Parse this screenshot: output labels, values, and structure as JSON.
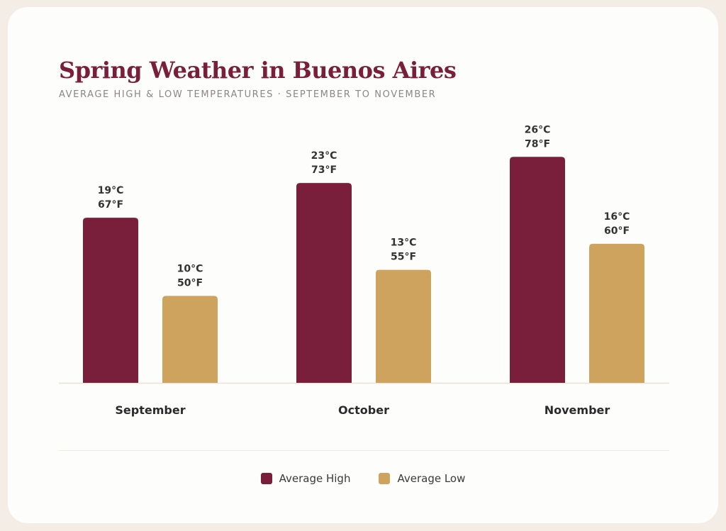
{
  "colors": {
    "high": "#7a1f3b",
    "low": "#cda35e",
    "title": "#7a1f3b",
    "axis": "#e9dfd2"
  },
  "chart_data": {
    "type": "bar",
    "title": "Spring Weather in Buenos Aires",
    "subtitle": "AVERAGE HIGH & LOW TEMPERATURES · SEPTEMBER TO NOVEMBER",
    "categories": [
      "September",
      "October",
      "November"
    ],
    "series": [
      {
        "name": "Average High",
        "values": [
          19,
          23,
          26
        ],
        "values_f": [
          67,
          73,
          78
        ],
        "labels_c": [
          "19°C",
          "23°C",
          "26°C"
        ],
        "labels_f": [
          "67°F",
          "73°F",
          "78°F"
        ]
      },
      {
        "name": "Average Low",
        "values": [
          10,
          13,
          16
        ],
        "values_f": [
          50,
          55,
          60
        ],
        "labels_c": [
          "10°C",
          "13°C",
          "16°C"
        ],
        "labels_f": [
          "50°F",
          "55°F",
          "60°F"
        ]
      }
    ],
    "ylim": [
      0,
      31
    ],
    "grid": false,
    "legend": "bottom-center"
  }
}
